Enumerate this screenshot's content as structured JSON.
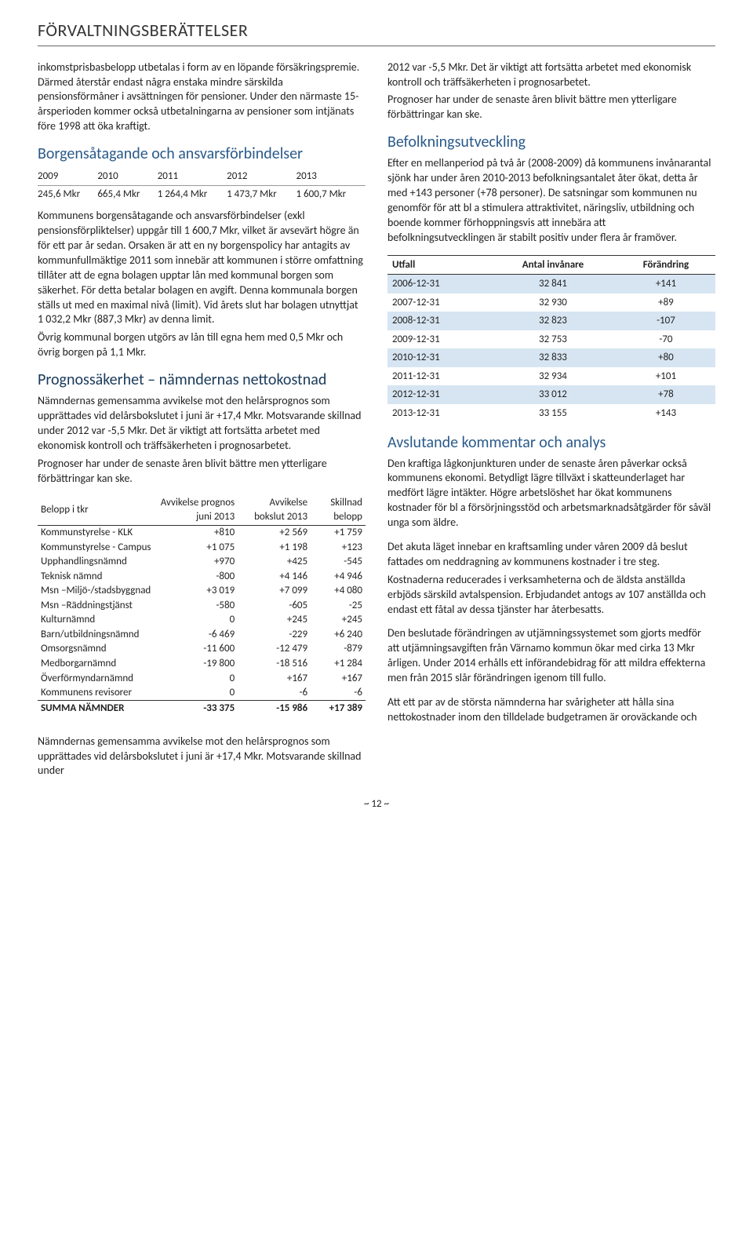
{
  "header": "FÖRVALTNINGSBERÄTTELSER",
  "left": {
    "p1": "inkomstprisbasbelopp utbetalas i form av en löpande försäkringspremie. Därmed återstår endast några enstaka mindre särskilda pensionsförmåner i avsättningen för pensioner. Under den närmaste 15-årsperioden kommer också utbetalningarna av pensioner som intjänats före 1998 att öka kraftigt.",
    "h1": "Borgensåtagande och ansvarsförbindelser",
    "t1_head": [
      "2009",
      "2010",
      "2011",
      "2012",
      "2013"
    ],
    "t1_row": [
      "245,6 Mkr",
      "665,4 Mkr",
      "1 264,4 Mkr",
      "1 473,7 Mkr",
      "1 600,7 Mkr"
    ],
    "p2": "Kommunens borgensåtagande och ansvarsförbindelser (exkl pensionsförpliktelser) uppgår till 1 600,7 Mkr, vilket är avsevärt högre än för ett par år sedan. Orsaken är att en ny borgenspolicy har antagits av kommunfullmäktige 2011 som innebär att kommunen i större omfattning tillåter att de egna bolagen upptar lån med kommunal borgen som säkerhet. För detta betalar bolagen en avgift. Denna kommunala borgen ställs ut med en maximal nivå (limit). Vid årets slut har bolagen utnyttjat 1 032,2 Mkr (887,3 Mkr) av denna limit.",
    "p3": "Övrig kommunal borgen utgörs av lån till egna hem med 0,5 Mkr och övrig borgen på 1,1 Mkr.",
    "h2": "Prognossäkerhet – nämndernas nettokostnad",
    "p4": "Nämndernas gemensamma avvikelse mot den helårsprognos som upprättades vid delårsbokslutet i juni är +17,4 Mkr. Motsvarande skillnad under 2012 var -5,5 Mkr. Det är viktigt att fortsätta arbetet med ekonomisk kontroll och träffsäkerheten i prognosarbetet.",
    "p5": "Prognoser har under de senaste åren blivit bättre men ytterligare förbättringar kan ske.",
    "t3_head": [
      "Belopp i tkr",
      "Avvikelse prognos juni 2013",
      "Avvikelse bokslut 2013",
      "Skillnad belopp"
    ],
    "t3_rows": [
      [
        "Kommunstyrelse - KLK",
        "+810",
        "+2 569",
        "+1 759"
      ],
      [
        "Kommunstyrelse - Campus",
        "+1 075",
        "+1 198",
        "+123"
      ],
      [
        "Upphandlingsnämnd",
        "+970",
        "+425",
        "-545"
      ],
      [
        "Teknisk nämnd",
        "-800",
        "+4 146",
        "+4 946"
      ],
      [
        "Msn –Miljö-/stadsbyggnad",
        "+3 019",
        "+7 099",
        "+4 080"
      ],
      [
        "Msn –Räddningstjänst",
        "-580",
        "-605",
        "-25"
      ],
      [
        "Kulturnämnd",
        "0",
        "+245",
        "+245"
      ],
      [
        "Barn/utbildningsnämnd",
        "-6 469",
        "-229",
        "+6 240"
      ],
      [
        "Omsorgsnämnd",
        "-11 600",
        "-12 479",
        "-879"
      ],
      [
        "Medborgarnämnd",
        "-19 800",
        "-18 516",
        "+1 284"
      ],
      [
        "Överförmyndarnämnd",
        "0",
        "+167",
        "+167"
      ],
      [
        "Kommunens revisorer",
        "0",
        "-6",
        "-6"
      ]
    ],
    "t3_sum": [
      "SUMMA NÄMNDER",
      "-33 375",
      "-15 986",
      "+17 389"
    ],
    "p6": "Nämndernas gemensamma avvikelse mot den helårsprognos som upprättades vid delårsbokslutet i juni är +17,4 Mkr. Motsvarande skillnad under"
  },
  "right": {
    "p1": "2012 var -5,5 Mkr. Det är viktigt att fortsätta arbetet med ekonomisk kontroll och träffsäkerheten i prognosarbetet.",
    "p2": "Prognoser har under de senaste åren blivit bättre men ytterligare förbättringar kan ske.",
    "h1": "Befolkningsutveckling",
    "p3": "Efter en mellanperiod på två år (2008-2009) då kommunens invånarantal sjönk har under åren 2010-2013 befolkningsantalet åter ökat, detta år med +143 personer (+78 personer). De satsningar som kommunen nu genomför för att bl a stimulera attraktivitet, näringsliv, utbildning och boende kommer förhoppningsvis att innebära att befolkningsutvecklingen är stabilt positiv under flera år framöver.",
    "t2_head": [
      "Utfall",
      "Antal invånare",
      "Förändring"
    ],
    "t2_rows": [
      [
        "2006-12-31",
        "32 841",
        "+141"
      ],
      [
        "2007-12-31",
        "32 930",
        "+89"
      ],
      [
        "2008-12-31",
        "32 823",
        "-107"
      ],
      [
        "2009-12-31",
        "32 753",
        "-70"
      ],
      [
        "2010-12-31",
        "32 833",
        "+80"
      ],
      [
        "2011-12-31",
        "32 934",
        "+101"
      ],
      [
        "2012-12-31",
        "33 012",
        "+78"
      ],
      [
        "2013-12-31",
        "33 155",
        "+143"
      ]
    ],
    "h2": "Avslutande kommentar och analys",
    "p4": "Den kraftiga lågkonjunkturen under de senaste åren påverkar också kommunens ekonomi. Betydligt lägre tillväxt i skatteunderlaget har medfört lägre intäkter. Högre arbetslöshet har ökat kommunens kostnader för bl a försörjningsstöd och arbetsmarknadsåtgärder för såväl unga som äldre.",
    "p5": "Det akuta läget innebar en kraftsamling under våren 2009 då beslut fattades om neddragning av kommunens kostnader i tre steg.",
    "p6": "Kostnaderna reducerades i verksamheterna och de äldsta anställda erbjöds särskild avtalspension. Erbjudandet antogs av 107 anställda och endast ett fåtal av dessa tjänster har återbesatts.",
    "p7": "Den beslutade förändringen av utjämningssystemet som gjorts medför att utjämningsavgiften från Värnamo kommun ökar med cirka 13 Mkr årligen. Under 2014 erhålls ett införandebidrag för att mildra effekterna men från 2015 slår förändringen igenom till fullo.",
    "p8": "Att ett par av de största nämnderna har svårigheter att hålla sina nettokostnader inom den tilldelade budgetramen är oroväckande och"
  },
  "pagefoot": "~ 12 ~"
}
